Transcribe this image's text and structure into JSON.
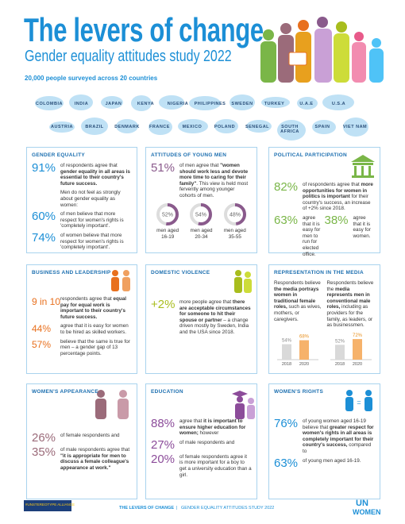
{
  "header": {
    "title": "The levers of change",
    "subtitle": "Gender equality attitudes study 2022",
    "survey": "20,000 people surveyed across 20 countries",
    "countries": [
      [
        "COLOMBIA",
        "INDIA",
        "JAPAN",
        "KENYA",
        "NIGERIA",
        "PHILIPPINES",
        "SWEDEN",
        "TURKEY",
        "U.A.E",
        "U.S.A"
      ],
      [
        "AUSTRIA",
        "BRAZIL",
        "DENMARK",
        "FRANCE",
        "MEXICO",
        "POLAND",
        "SENEGAL",
        "SOUTH AFRICA",
        "SPAIN",
        "VIET NAM"
      ]
    ]
  },
  "panels": [
    {
      "title": "GENDER EQUALITY",
      "items": [
        {
          "value": "91%",
          "parts": [
            {
              "plain": "of respondents agree that "
            },
            {
              "bold": "gender equality in all areas is essential to their country's future success."
            }
          ]
        },
        {
          "parts": [
            {
              "plain": "Men do not feel as strongly about gender equality as women:"
            }
          ]
        },
        {
          "value": "60%",
          "parts": [
            {
              "plain": "of men believe that more respect for women's rights is 'completely important'."
            }
          ]
        },
        {
          "value": "74%",
          "parts": [
            {
              "plain": "of women believe that more respect for women's rights is 'completely important'."
            }
          ]
        }
      ]
    },
    {
      "title": "ATTITUDES OF YOUNG MEN",
      "items": [
        {
          "value": "51%",
          "parts": [
            {
              "plain": "of men agree that "
            },
            {
              "bold": "\"women should work less and devote more time to caring for their family\""
            },
            {
              "plain": ". This view is held most fervently among younger cohorts of men."
            }
          ]
        }
      ],
      "rings": [
        {
          "value": 52,
          "label": "52%",
          "caption": "men aged 16-19"
        },
        {
          "value": 54,
          "label": "54%",
          "caption": "men aged 20-34"
        },
        {
          "value": 48,
          "label": "48%",
          "caption": "men aged 35-55"
        }
      ]
    },
    {
      "title": "POLITICAL PARTICIPATION",
      "items": [
        {
          "value": "82%",
          "parts": [
            {
              "plain": "of respondents agree that "
            },
            {
              "bold": "more opportunities for women in politics is important"
            },
            {
              "plain": " for their country's success, an increase of +2% since 2018."
            }
          ]
        },
        {
          "row": [
            {
              "value": "63%",
              "parts": [
                {
                  "plain": "agree that it is easy for men to run for elected office."
                }
              ]
            },
            {
              "value": "38%",
              "parts": [
                {
                  "plain": "agree that it is easy for women."
                }
              ]
            }
          ]
        }
      ]
    },
    {
      "title": "BUSINESS AND LEADERSHIP",
      "items": [
        {
          "value": "9 in 10",
          "parts": [
            {
              "plain": "respondents agree that "
            },
            {
              "bold": "equal pay for equal work is important to their country's future success."
            }
          ]
        },
        {
          "value": "44%",
          "parts": [
            {
              "plain": "agree that it is easy for women to be hired as skilled workers."
            }
          ]
        },
        {
          "value": "57%",
          "parts": [
            {
              "plain": "believe that the same is true for men – a gender gap of 13 percentage points."
            }
          ]
        }
      ]
    },
    {
      "title": "DOMESTIC VIOLENCE",
      "items": [
        {
          "value": "+2%",
          "parts": [
            {
              "plain": "more people agree that "
            },
            {
              "bold": "there are acceptable circumstances for someone to hit their spouse or partner"
            },
            {
              "plain": " – a change driven mostly by Sweden, India and the USA since 2018."
            }
          ]
        }
      ]
    },
    {
      "title": "REPRESENTATION IN THE MEDIA",
      "columns": [
        {
          "parts": [
            {
              "plain": "Respondents believe "
            },
            {
              "bold": "the media portrays women in traditional female roles,"
            },
            {
              "plain": " such as wives, mothers, or caregivers."
            }
          ],
          "bars": [
            {
              "year": "2018",
              "value": 54,
              "label": "54%"
            },
            {
              "year": "2020",
              "value": 68,
              "label": "68%"
            }
          ]
        },
        {
          "parts": [
            {
              "plain": "Respondents believe the "
            },
            {
              "bold": "media represents men in conventional male roles,"
            },
            {
              "plain": " including as providers for the family, as leaders, or as businessmen."
            }
          ],
          "bars": [
            {
              "year": "2018",
              "value": 52,
              "label": "52%"
            },
            {
              "year": "2020",
              "value": 72,
              "label": "72%"
            }
          ]
        }
      ]
    },
    {
      "title": "WOMEN'S APPEARANCE",
      "items": [
        {
          "value": "26%",
          "parts": [
            {
              "plain": "of female respondents and"
            }
          ]
        },
        {
          "value": "35%",
          "parts": [
            {
              "plain": "of male respondents agree that "
            },
            {
              "bold": "\"it is appropriate for men to discuss a female colleague's appearance at work.\""
            }
          ]
        }
      ]
    },
    {
      "title": "EDUCATION",
      "items": [
        {
          "value": "88%",
          "parts": [
            {
              "plain": "agree that "
            },
            {
              "bold": "it is important to ensure higher education for women;"
            },
            {
              "plain": " however"
            }
          ]
        },
        {
          "value": "27%",
          "parts": [
            {
              "plain": "of male respondents and"
            }
          ]
        },
        {
          "value": "20%",
          "parts": [
            {
              "plain": "of female respondents agree it is more important for a boy to get a university education than a girl."
            }
          ]
        }
      ]
    },
    {
      "title": "WOMEN'S RIGHTS",
      "items": [
        {
          "value": "76%",
          "parts": [
            {
              "plain": "of young women aged 16-19 believe that "
            },
            {
              "bold": "greater respect for women's rights in all areas is completely important for their country's success,"
            },
            {
              "plain": " compared to"
            }
          ]
        },
        {
          "value": "63%",
          "parts": [
            {
              "plain": "of young men aged 16-19."
            }
          ]
        }
      ]
    }
  ],
  "footer": {
    "alliance": "#UNSTEREOTYPE ALLIANCE",
    "study": "THE LEVERS OF CHANGE",
    "substudy": "GENDER EQUALITY ATTITUDES STUDY 2022",
    "un": "UN",
    "women": "WOMEN"
  }
}
